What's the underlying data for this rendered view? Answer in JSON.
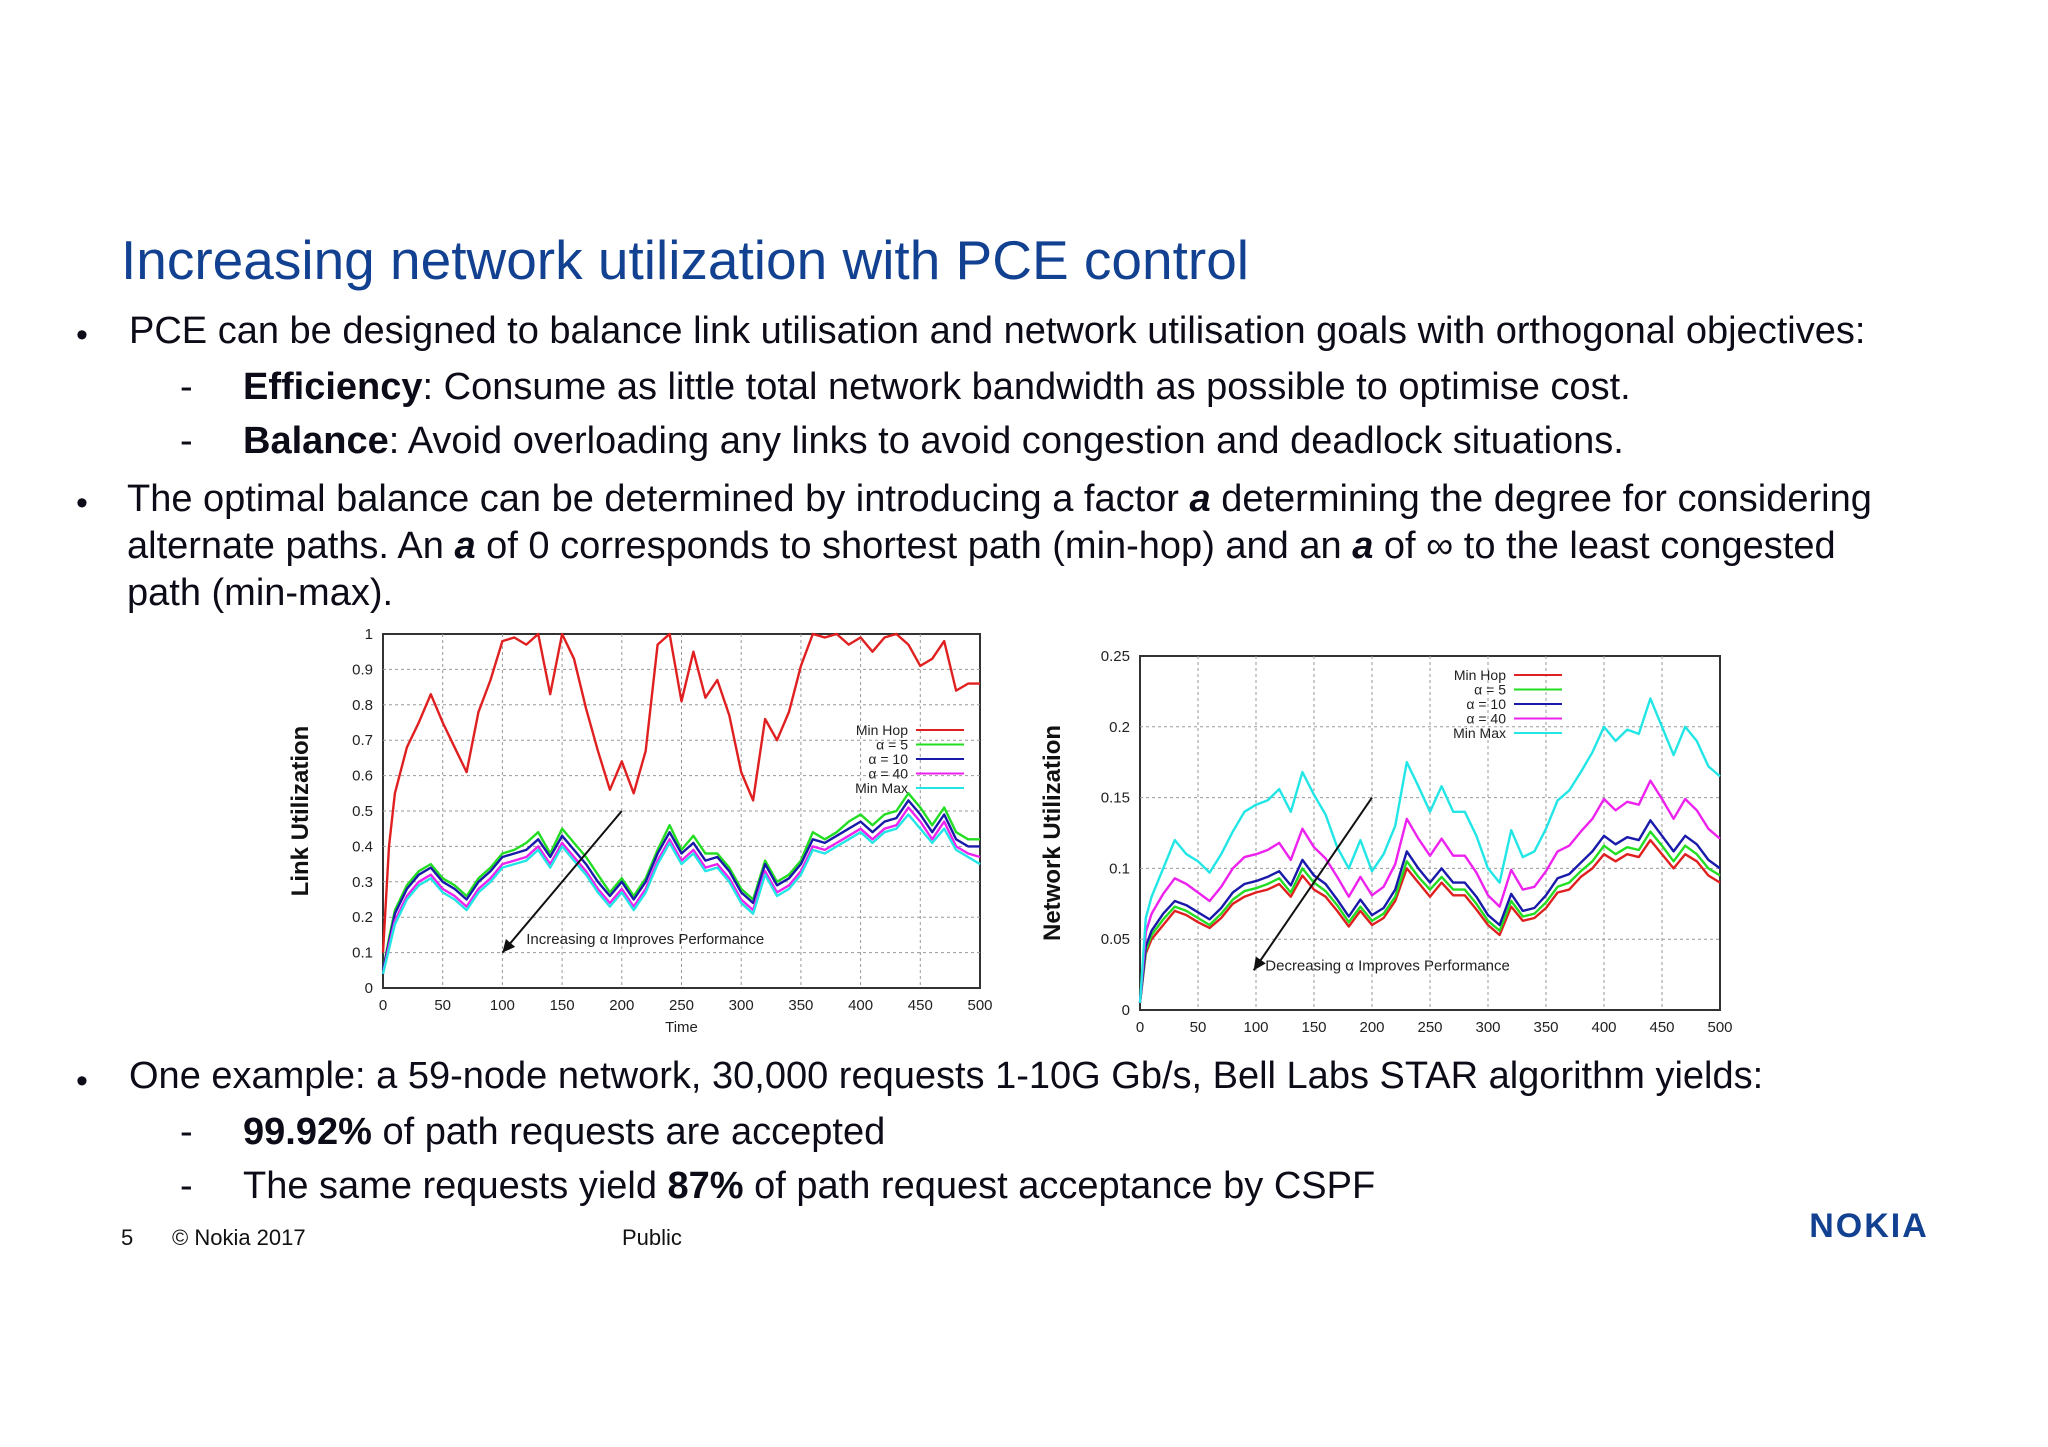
{
  "slide": {
    "title": "Increasing network utilization with PCE control",
    "bullet1": "PCE can be designed to balance link utilisation and network utilisation goals with orthogonal objectives:",
    "sub1_bold": "Efficiency",
    "sub1_rest": ": Consume as little total network bandwidth as possible to optimise cost.",
    "sub2_bold": "Balance",
    "sub2_rest": ": Avoid overloading any links to avoid congestion and deadlock situations.",
    "bullet2_l1a": "The optimal balance can be determined by introducing a factor ",
    "bullet2_alpha": "a",
    "bullet2_l1b": " determining the degree for considering",
    "bullet2_l2a": "alternate paths. An ",
    "bullet2_l2b": " of 0 corresponds to shortest path (min-hop) and an ",
    "bullet2_l2c": " of ∞ to the least congested",
    "bullet2_l3": "path (min-max).",
    "bullet3": "One example: a 59-node network, 30,000 requests 1-10G Gb/s, Bell Labs STAR algorithm  yields:",
    "sub3_bold": "99.92%",
    "sub3_rest": " of path requests are accepted",
    "sub4_a": "The same requests yield ",
    "sub4_bold": "87%",
    "sub4_b": " of path request acceptance by CSPF",
    "bullet_symbol": "•",
    "dash_symbol": "-"
  },
  "footer": {
    "page_number": "5",
    "copyright": "© Nokia 2017",
    "classification": "Public",
    "logo": "NOKIA"
  },
  "colors": {
    "title": "#124191",
    "min_hop": "#e02020",
    "alpha5": "#22dd22",
    "alpha10": "#1a1aaa",
    "alpha40": "#ee22ee",
    "min_max": "#22e6e6"
  },
  "chart_data": [
    {
      "type": "line",
      "ylabel": "Link Utilization",
      "xlabel": "Time",
      "xlim": [
        0,
        500
      ],
      "ylim": [
        0,
        1
      ],
      "x_ticks": [
        "0",
        "50",
        "100",
        "150",
        "200",
        "250",
        "300",
        "350",
        "400",
        "450",
        "500"
      ],
      "y_ticks": [
        "0",
        "0.1",
        "0.2",
        "0.3",
        "0.4",
        "0.5",
        "0.6",
        "0.7",
        "0.8",
        "0.9",
        "1"
      ],
      "annotation": "Increasing α Improves Performance",
      "grid": true,
      "legend": "right",
      "x": [
        0,
        5,
        10,
        20,
        30,
        40,
        50,
        60,
        70,
        80,
        90,
        100,
        110,
        120,
        130,
        140,
        150,
        160,
        170,
        180,
        190,
        200,
        210,
        220,
        230,
        240,
        250,
        260,
        270,
        280,
        290,
        300,
        310,
        320,
        330,
        340,
        350,
        360,
        370,
        380,
        390,
        400,
        410,
        420,
        430,
        440,
        450,
        460,
        470,
        480,
        490,
        500
      ],
      "series": [
        {
          "name": "Min Hop",
          "values": [
            0.1,
            0.4,
            0.55,
            0.68,
            0.75,
            0.83,
            0.75,
            0.68,
            0.61,
            0.78,
            0.87,
            0.98,
            0.99,
            0.97,
            1.0,
            0.83,
            1.0,
            0.93,
            0.79,
            0.67,
            0.56,
            0.64,
            0.55,
            0.67,
            0.97,
            1.0,
            0.81,
            0.95,
            0.82,
            0.87,
            0.77,
            0.61,
            0.53,
            0.76,
            0.7,
            0.78,
            0.91,
            1.0,
            0.99,
            1.0,
            0.97,
            0.99,
            0.95,
            0.99,
            1.0,
            0.97,
            0.91,
            0.93,
            0.98,
            0.84,
            0.86,
            0.86
          ]
        },
        {
          "name": "α = 5",
          "values": [
            0.05,
            0.14,
            0.22,
            0.29,
            0.33,
            0.35,
            0.31,
            0.29,
            0.26,
            0.31,
            0.34,
            0.38,
            0.39,
            0.41,
            0.44,
            0.38,
            0.45,
            0.41,
            0.37,
            0.32,
            0.27,
            0.31,
            0.26,
            0.31,
            0.39,
            0.46,
            0.39,
            0.43,
            0.38,
            0.38,
            0.34,
            0.28,
            0.25,
            0.36,
            0.3,
            0.32,
            0.36,
            0.44,
            0.42,
            0.44,
            0.47,
            0.49,
            0.46,
            0.49,
            0.5,
            0.55,
            0.51,
            0.46,
            0.51,
            0.44,
            0.42,
            0.42
          ]
        },
        {
          "name": "α = 10",
          "values": [
            0.05,
            0.13,
            0.21,
            0.28,
            0.32,
            0.34,
            0.3,
            0.28,
            0.25,
            0.3,
            0.33,
            0.37,
            0.38,
            0.39,
            0.42,
            0.37,
            0.43,
            0.39,
            0.35,
            0.3,
            0.26,
            0.3,
            0.25,
            0.3,
            0.38,
            0.44,
            0.38,
            0.41,
            0.36,
            0.37,
            0.33,
            0.27,
            0.24,
            0.35,
            0.29,
            0.31,
            0.35,
            0.42,
            0.41,
            0.43,
            0.45,
            0.47,
            0.44,
            0.47,
            0.48,
            0.53,
            0.49,
            0.44,
            0.49,
            0.42,
            0.4,
            0.4
          ]
        },
        {
          "name": "α = 40",
          "values": [
            0.04,
            0.12,
            0.19,
            0.26,
            0.3,
            0.32,
            0.28,
            0.26,
            0.23,
            0.28,
            0.31,
            0.35,
            0.36,
            0.37,
            0.4,
            0.35,
            0.41,
            0.37,
            0.33,
            0.28,
            0.24,
            0.28,
            0.23,
            0.28,
            0.36,
            0.42,
            0.36,
            0.39,
            0.34,
            0.35,
            0.31,
            0.25,
            0.22,
            0.33,
            0.27,
            0.29,
            0.33,
            0.4,
            0.39,
            0.41,
            0.43,
            0.45,
            0.42,
            0.45,
            0.46,
            0.51,
            0.47,
            0.42,
            0.47,
            0.4,
            0.38,
            0.37
          ]
        },
        {
          "name": "Min Max",
          "values": [
            0.04,
            0.11,
            0.18,
            0.25,
            0.29,
            0.31,
            0.27,
            0.25,
            0.22,
            0.27,
            0.3,
            0.34,
            0.35,
            0.36,
            0.39,
            0.34,
            0.4,
            0.36,
            0.32,
            0.27,
            0.23,
            0.27,
            0.22,
            0.27,
            0.35,
            0.41,
            0.35,
            0.38,
            0.33,
            0.34,
            0.3,
            0.24,
            0.21,
            0.32,
            0.26,
            0.28,
            0.32,
            0.39,
            0.38,
            0.4,
            0.42,
            0.44,
            0.41,
            0.44,
            0.45,
            0.49,
            0.45,
            0.41,
            0.45,
            0.39,
            0.37,
            0.35
          ]
        }
      ]
    },
    {
      "type": "line",
      "ylabel": "Network Utilization",
      "xlim": [
        0,
        500
      ],
      "ylim": [
        0,
        0.25
      ],
      "x_ticks": [
        "0",
        "50",
        "100",
        "150",
        "200",
        "250",
        "300",
        "350",
        "400",
        "450",
        "500"
      ],
      "y_ticks": [
        "0",
        "0.05",
        "0.1",
        "0.15",
        "0.2",
        "0.25"
      ],
      "annotation": "Decreasing α Improves Performance",
      "grid": true,
      "legend": "top-right",
      "x": [
        0,
        5,
        10,
        20,
        30,
        40,
        50,
        60,
        70,
        80,
        90,
        100,
        110,
        120,
        130,
        140,
        150,
        160,
        170,
        180,
        190,
        200,
        210,
        220,
        230,
        240,
        250,
        260,
        270,
        280,
        290,
        300,
        310,
        320,
        330,
        340,
        350,
        360,
        370,
        380,
        390,
        400,
        410,
        420,
        430,
        440,
        450,
        460,
        470,
        480,
        490,
        500
      ],
      "series": [
        {
          "name": "Min Hop",
          "values": [
            0.005,
            0.04,
            0.05,
            0.06,
            0.07,
            0.067,
            0.062,
            0.058,
            0.065,
            0.075,
            0.08,
            0.083,
            0.085,
            0.089,
            0.08,
            0.095,
            0.085,
            0.08,
            0.07,
            0.059,
            0.07,
            0.06,
            0.065,
            0.077,
            0.1,
            0.09,
            0.08,
            0.09,
            0.081,
            0.081,
            0.071,
            0.06,
            0.053,
            0.073,
            0.063,
            0.065,
            0.072,
            0.083,
            0.085,
            0.094,
            0.1,
            0.11,
            0.105,
            0.11,
            0.108,
            0.12,
            0.11,
            0.1,
            0.11,
            0.105,
            0.095,
            0.09
          ]
        },
        {
          "name": "α = 5",
          "values": [
            0.005,
            0.042,
            0.053,
            0.064,
            0.073,
            0.07,
            0.065,
            0.06,
            0.068,
            0.078,
            0.084,
            0.086,
            0.089,
            0.093,
            0.083,
            0.1,
            0.09,
            0.084,
            0.074,
            0.062,
            0.073,
            0.063,
            0.068,
            0.08,
            0.105,
            0.094,
            0.085,
            0.094,
            0.085,
            0.085,
            0.075,
            0.063,
            0.056,
            0.077,
            0.066,
            0.068,
            0.076,
            0.087,
            0.09,
            0.098,
            0.105,
            0.116,
            0.11,
            0.115,
            0.113,
            0.126,
            0.116,
            0.105,
            0.116,
            0.11,
            0.1,
            0.095
          ]
        },
        {
          "name": "α = 10",
          "values": [
            0.005,
            0.045,
            0.056,
            0.068,
            0.077,
            0.074,
            0.069,
            0.064,
            0.072,
            0.083,
            0.089,
            0.091,
            0.094,
            0.098,
            0.088,
            0.106,
            0.095,
            0.089,
            0.078,
            0.066,
            0.078,
            0.067,
            0.072,
            0.085,
            0.112,
            0.1,
            0.09,
            0.1,
            0.09,
            0.09,
            0.08,
            0.067,
            0.06,
            0.082,
            0.07,
            0.072,
            0.081,
            0.093,
            0.096,
            0.104,
            0.112,
            0.123,
            0.117,
            0.122,
            0.12,
            0.134,
            0.123,
            0.112,
            0.123,
            0.117,
            0.106,
            0.1
          ]
        },
        {
          "name": "α = 40",
          "values": [
            0.005,
            0.055,
            0.068,
            0.082,
            0.093,
            0.089,
            0.083,
            0.077,
            0.087,
            0.1,
            0.108,
            0.11,
            0.113,
            0.118,
            0.106,
            0.128,
            0.115,
            0.107,
            0.094,
            0.08,
            0.094,
            0.081,
            0.087,
            0.103,
            0.135,
            0.121,
            0.109,
            0.121,
            0.109,
            0.109,
            0.097,
            0.081,
            0.073,
            0.099,
            0.085,
            0.087,
            0.098,
            0.112,
            0.116,
            0.126,
            0.135,
            0.149,
            0.141,
            0.147,
            0.145,
            0.162,
            0.149,
            0.135,
            0.149,
            0.141,
            0.128,
            0.121
          ]
        },
        {
          "name": "Min Max",
          "values": [
            0.005,
            0.065,
            0.08,
            0.1,
            0.12,
            0.11,
            0.105,
            0.097,
            0.11,
            0.126,
            0.14,
            0.145,
            0.148,
            0.156,
            0.14,
            0.168,
            0.152,
            0.138,
            0.115,
            0.1,
            0.12,
            0.098,
            0.11,
            0.13,
            0.175,
            0.158,
            0.14,
            0.158,
            0.14,
            0.14,
            0.123,
            0.1,
            0.09,
            0.127,
            0.108,
            0.112,
            0.128,
            0.148,
            0.155,
            0.168,
            0.182,
            0.2,
            0.19,
            0.198,
            0.195,
            0.22,
            0.2,
            0.18,
            0.2,
            0.19,
            0.172,
            0.165
          ]
        }
      ]
    }
  ]
}
